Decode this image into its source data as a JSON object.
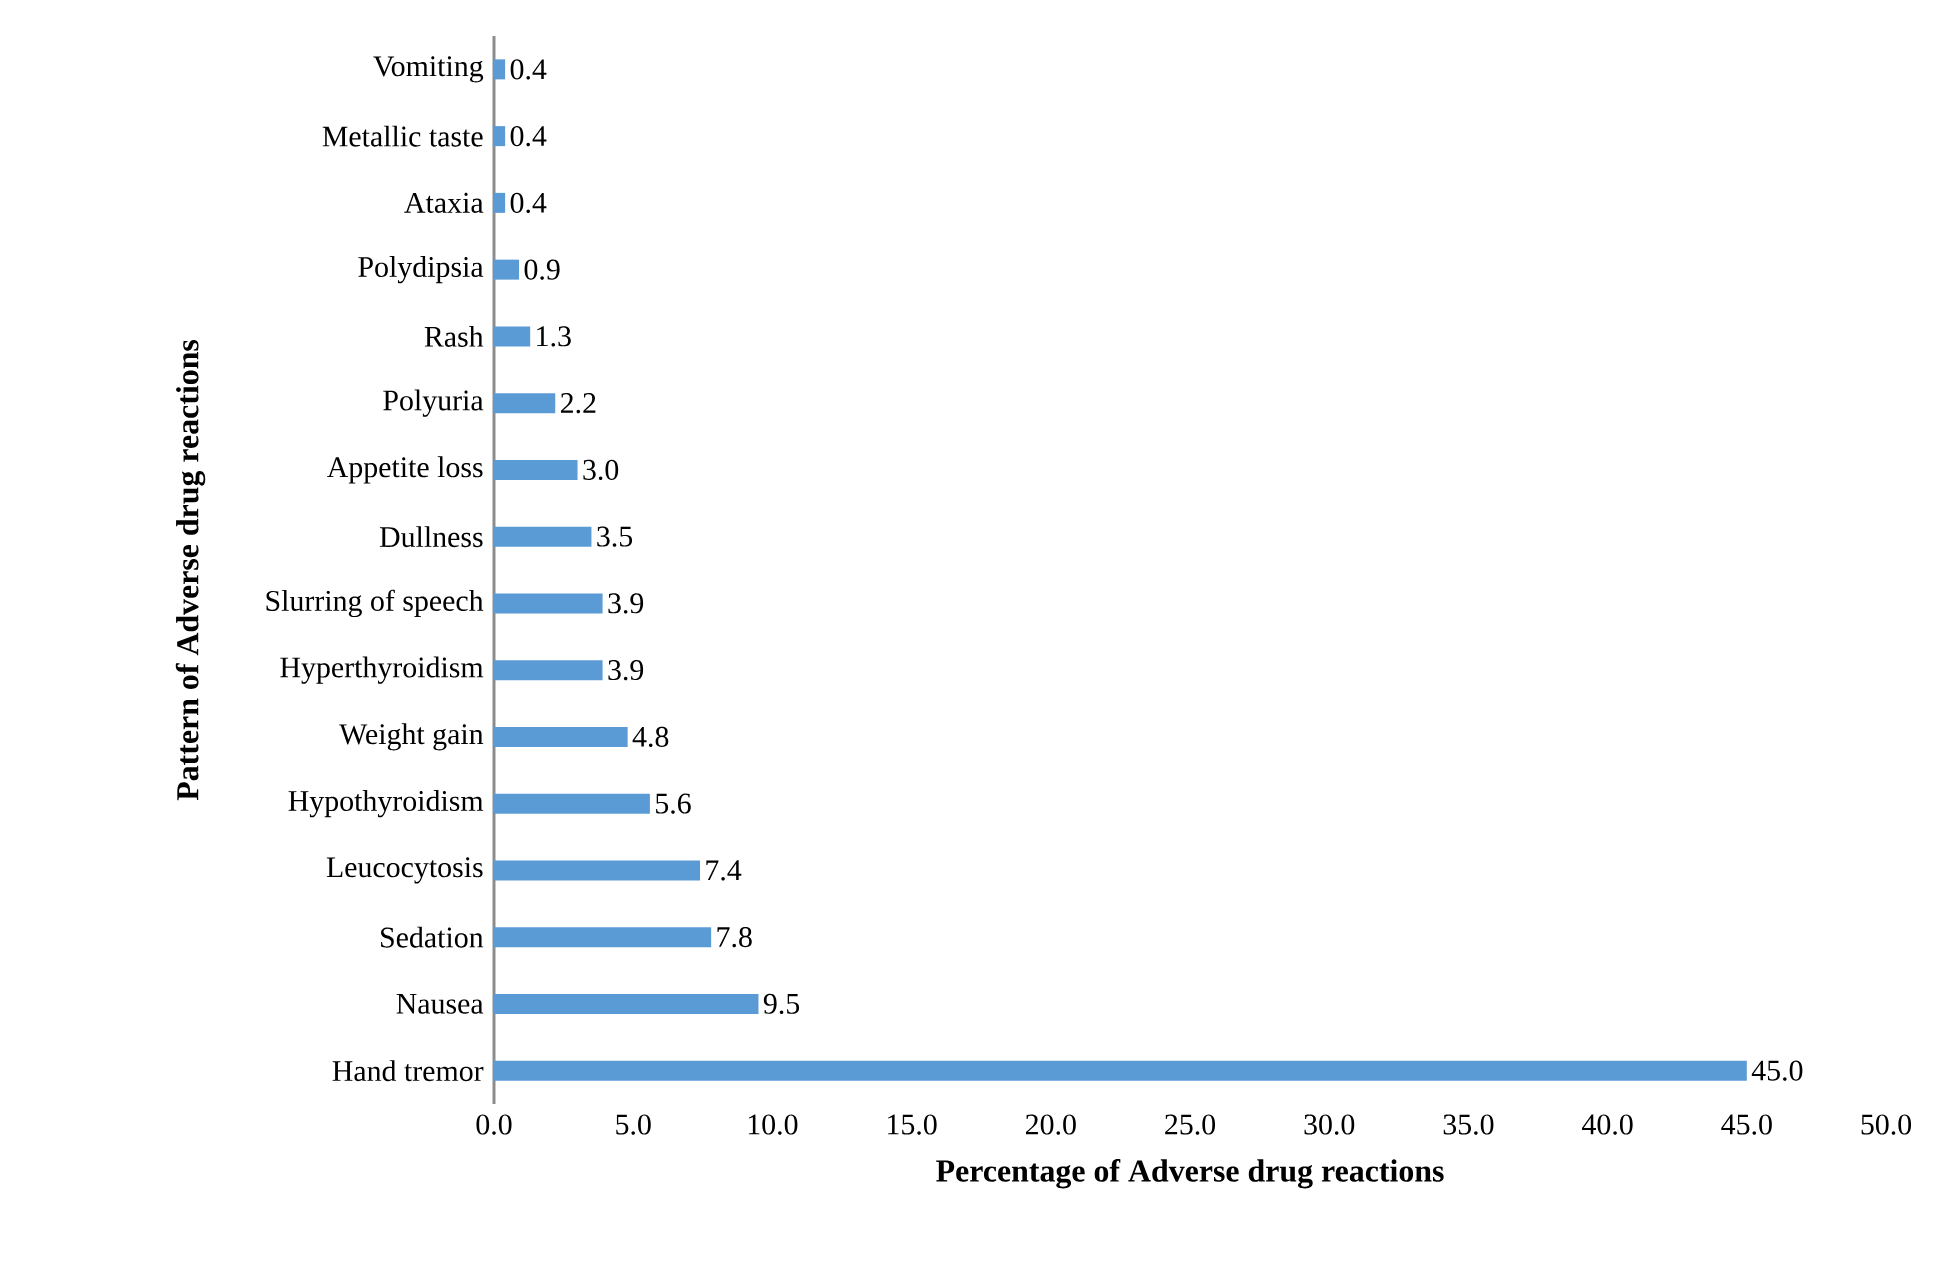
{
  "chart_data": {
    "type": "bar",
    "orientation": "horizontal",
    "xlabel": "Percentage of Adverse drug reactions",
    "ylabel": "Pattern of Adverse drug reactions",
    "categories": [
      "Vomiting",
      "Metallic taste",
      "Ataxia",
      "Polydipsia",
      "Rash",
      "Polyuria",
      "Appetite loss",
      "Dullness",
      "Slurring of speech",
      "Hyperthyroidism",
      "Weight gain",
      "Hypothyroidism",
      "Leucocytosis",
      "Sedation",
      "Nausea",
      "Hand tremor"
    ],
    "values": [
      0.4,
      0.4,
      0.4,
      0.9,
      1.3,
      2.2,
      3.0,
      3.5,
      3.9,
      3.9,
      4.8,
      5.6,
      7.4,
      7.8,
      9.5,
      45.0
    ],
    "value_labels": [
      "0.4",
      "0.4",
      "0.4",
      "0.9",
      "1.3",
      "2.2",
      "3.0",
      "3.5",
      "3.9",
      "3.9",
      "4.8",
      "5.6",
      "7.4",
      "7.8",
      "9.5",
      "45.0"
    ],
    "color": "#5b9bd5",
    "xlim": [
      0,
      50
    ],
    "xticks": [
      {
        "value": 0,
        "label": "0.0"
      },
      {
        "value": 5,
        "label": "5.0"
      },
      {
        "value": 10,
        "label": "10.0"
      },
      {
        "value": 15,
        "label": "15.0"
      },
      {
        "value": 20,
        "label": "20.0"
      },
      {
        "value": 25,
        "label": "25.0"
      },
      {
        "value": 30,
        "label": "30.0"
      },
      {
        "value": 35,
        "label": "35.0"
      },
      {
        "value": 40,
        "label": "40.0"
      },
      {
        "value": 45,
        "label": "45.0"
      },
      {
        "value": 50,
        "label": "50.0"
      }
    ]
  }
}
